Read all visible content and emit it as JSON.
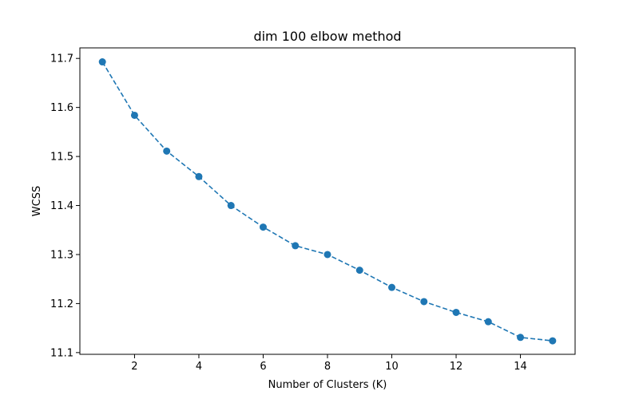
{
  "chart_data": {
    "type": "line",
    "title": "dim 100 elbow method",
    "xlabel": "Number of Clusters (K)",
    "ylabel": "WCSS",
    "xlim": [
      0.3,
      15.7
    ],
    "ylim": [
      11.0965,
      11.7215
    ],
    "xticks": [
      2,
      4,
      6,
      8,
      10,
      12,
      14
    ],
    "yticks": [
      11.1,
      11.2,
      11.3,
      11.4,
      11.5,
      11.6,
      11.7
    ],
    "grid": false,
    "line_style": "dashed",
    "marker": "circle",
    "series": [
      {
        "color": "#1f77b4",
        "x": [
          1,
          2,
          3,
          4,
          5,
          6,
          7,
          8,
          9,
          10,
          11,
          12,
          13,
          14,
          15
        ],
        "y": [
          11.693,
          11.584,
          11.511,
          11.459,
          11.4,
          11.356,
          11.318,
          11.3,
          11.268,
          11.233,
          11.204,
          11.182,
          11.163,
          11.131,
          11.124
        ]
      }
    ]
  }
}
